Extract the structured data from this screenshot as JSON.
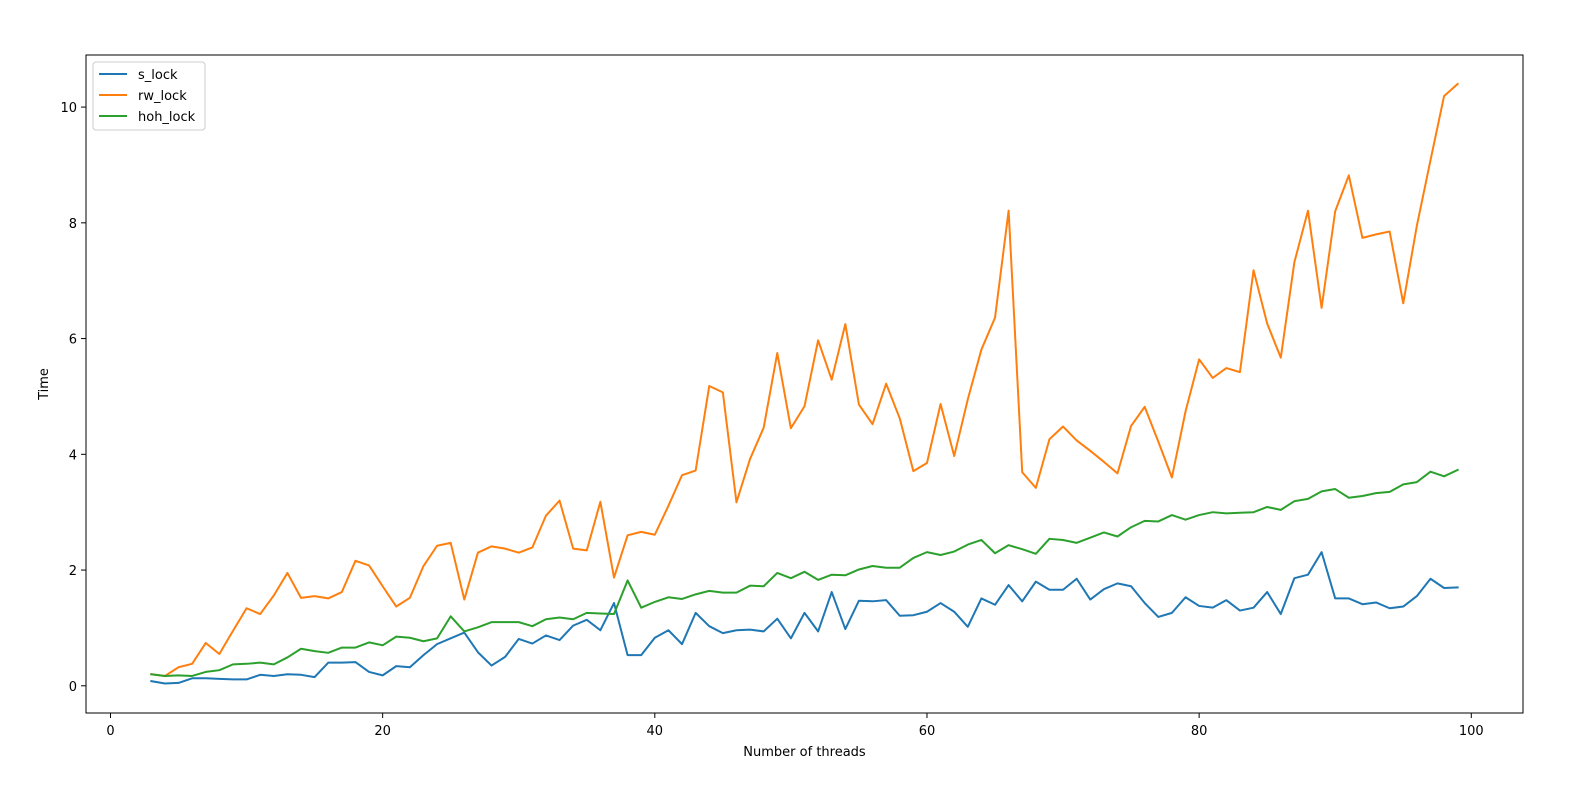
{
  "chart_data": {
    "type": "line",
    "title": "",
    "xlabel": "Number of threads",
    "ylabel": "Time",
    "xlim": [
      -1.8,
      103.8
    ],
    "ylim": [
      -0.47,
      10.9
    ],
    "xticks": [
      "0",
      "20",
      "40",
      "60",
      "80",
      "100"
    ],
    "yticks": [
      "0",
      "2",
      "4",
      "6",
      "8",
      "10"
    ],
    "grid": false,
    "legend_position": "upper-left",
    "x": [
      3,
      4,
      5,
      6,
      7,
      8,
      9,
      10,
      11,
      12,
      13,
      14,
      15,
      16,
      17,
      18,
      19,
      20,
      21,
      22,
      23,
      24,
      25,
      26,
      27,
      28,
      29,
      30,
      31,
      32,
      33,
      34,
      35,
      36,
      37,
      38,
      39,
      40,
      41,
      42,
      43,
      44,
      45,
      46,
      47,
      48,
      49,
      50,
      51,
      52,
      53,
      54,
      55,
      56,
      57,
      58,
      59,
      60,
      61,
      62,
      63,
      64,
      65,
      66,
      67,
      68,
      69,
      70,
      71,
      72,
      73,
      74,
      75,
      76,
      77,
      78,
      79,
      80,
      81,
      82,
      83,
      84,
      85,
      86,
      87,
      88,
      89,
      90,
      91,
      92,
      93,
      94,
      95,
      96,
      97,
      98,
      99
    ],
    "series": [
      {
        "name": "s_lock",
        "color": "#1f77b4",
        "values": [
          0.08,
          0.04,
          0.05,
          0.13,
          0.13,
          0.12,
          0.11,
          0.11,
          0.19,
          0.17,
          0.2,
          0.19,
          0.15,
          0.4,
          0.4,
          0.41,
          0.24,
          0.18,
          0.34,
          0.32,
          0.53,
          0.72,
          0.82,
          0.92,
          0.58,
          0.35,
          0.5,
          0.81,
          0.73,
          0.87,
          0.79,
          1.04,
          1.14,
          0.96,
          1.43,
          0.53,
          0.53,
          0.83,
          0.96,
          0.72,
          1.26,
          1.03,
          0.91,
          0.96,
          0.97,
          0.94,
          1.16,
          0.82,
          1.26,
          0.94,
          1.62,
          0.98,
          1.47,
          1.46,
          1.48,
          1.21,
          1.22,
          1.28,
          1.43,
          1.28,
          1.02,
          1.51,
          1.4,
          1.74,
          1.46,
          1.8,
          1.66,
          1.66,
          1.85,
          1.49,
          1.67,
          1.77,
          1.72,
          1.43,
          1.19,
          1.26,
          1.53,
          1.38,
          1.35,
          1.48,
          1.3,
          1.35,
          1.62,
          1.24,
          1.86,
          1.92,
          2.31,
          1.51,
          1.51,
          1.41,
          1.44,
          1.34,
          1.37,
          1.55,
          1.85,
          1.69,
          1.7
        ]
      },
      {
        "name": "rw_lock",
        "color": "#ff7f0e",
        "values": [
          0.2,
          0.17,
          0.32,
          0.38,
          0.74,
          0.55,
          0.95,
          1.34,
          1.24,
          1.56,
          1.95,
          1.52,
          1.55,
          1.51,
          1.62,
          2.16,
          2.08,
          1.72,
          1.37,
          1.52,
          2.07,
          2.42,
          2.47,
          1.49,
          2.3,
          2.41,
          2.37,
          2.3,
          2.39,
          2.94,
          3.2,
          2.37,
          2.34,
          3.18,
          1.87,
          2.6,
          2.66,
          2.61,
          3.11,
          3.64,
          3.72,
          5.18,
          5.07,
          3.17,
          3.92,
          4.46,
          5.75,
          4.45,
          4.83,
          5.97,
          5.29,
          6.25,
          4.86,
          4.52,
          5.22,
          4.62,
          3.71,
          3.85,
          4.87,
          3.97,
          4.95,
          5.81,
          6.36,
          8.21,
          3.69,
          3.42,
          4.26,
          4.48,
          4.24,
          4.06,
          3.87,
          3.67,
          4.49,
          4.82,
          4.22,
          3.6,
          4.74,
          5.64,
          5.32,
          5.49,
          5.42,
          7.18,
          6.26,
          5.67,
          7.32,
          8.21,
          6.53,
          8.2,
          8.82,
          7.74,
          7.8,
          7.85,
          6.61,
          7.95,
          9.08,
          10.19,
          10.4
        ]
      },
      {
        "name": "hoh_lock",
        "color": "#2ca02c",
        "values": [
          0.2,
          0.17,
          0.18,
          0.17,
          0.24,
          0.27,
          0.37,
          0.38,
          0.4,
          0.37,
          0.49,
          0.64,
          0.6,
          0.57,
          0.66,
          0.66,
          0.75,
          0.7,
          0.85,
          0.83,
          0.77,
          0.82,
          1.2,
          0.94,
          1.01,
          1.1,
          1.1,
          1.1,
          1.03,
          1.15,
          1.18,
          1.15,
          1.26,
          1.25,
          1.24,
          1.82,
          1.35,
          1.45,
          1.53,
          1.5,
          1.58,
          1.64,
          1.61,
          1.61,
          1.73,
          1.72,
          1.95,
          1.86,
          1.97,
          1.83,
          1.92,
          1.91,
          2.01,
          2.07,
          2.04,
          2.04,
          2.21,
          2.31,
          2.26,
          2.32,
          2.44,
          2.52,
          2.29,
          2.43,
          2.36,
          2.28,
          2.54,
          2.52,
          2.47,
          2.56,
          2.65,
          2.58,
          2.74,
          2.85,
          2.84,
          2.95,
          2.87,
          2.95,
          3.0,
          2.98,
          2.99,
          3.0,
          3.09,
          3.04,
          3.19,
          3.23,
          3.36,
          3.4,
          3.25,
          3.28,
          3.33,
          3.35,
          3.48,
          3.52,
          3.7,
          3.62,
          3.73
        ]
      }
    ]
  }
}
